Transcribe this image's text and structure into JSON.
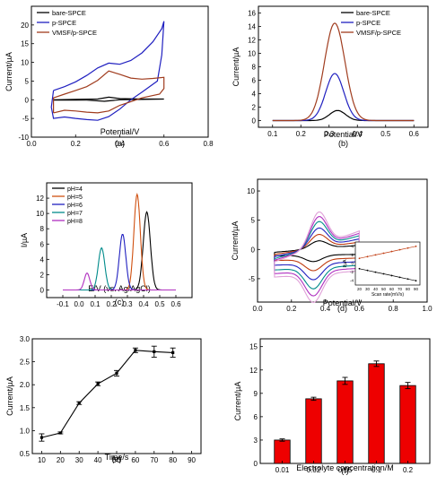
{
  "chart_data": [
    {
      "panel": "(a)",
      "type": "line",
      "xlabel": "Potential/V",
      "ylabel": "Current/µA",
      "xlim": [
        0.0,
        0.8
      ],
      "ylim": [
        -10,
        25
      ],
      "xticks": [
        "0.0",
        "0.2",
        "0.4",
        "0.6",
        "0.8"
      ],
      "yticks": [
        "-10",
        "-5",
        "0",
        "5",
        "10",
        "15",
        "20"
      ],
      "legend": "top-left",
      "series": [
        {
          "name": "bare-SPCE",
          "color": "#000000",
          "points": [
            [
              0.1,
              0
            ],
            [
              0.2,
              0.1
            ],
            [
              0.3,
              0.2
            ],
            [
              0.35,
              0.7
            ],
            [
              0.4,
              0.3
            ],
            [
              0.5,
              0.2
            ],
            [
              0.6,
              0.2
            ],
            [
              0.5,
              0.1
            ],
            [
              0.4,
              0
            ],
            [
              0.33,
              -0.4
            ],
            [
              0.25,
              -0.1
            ],
            [
              0.1,
              -0.1
            ]
          ]
        },
        {
          "name": "p-SPCE",
          "color": "#2020c0",
          "points": [
            [
              0.1,
              2.5
            ],
            [
              0.15,
              3.5
            ],
            [
              0.2,
              4.8
            ],
            [
              0.25,
              6.5
            ],
            [
              0.3,
              8.5
            ],
            [
              0.35,
              9.8
            ],
            [
              0.4,
              9.5
            ],
            [
              0.45,
              10.5
            ],
            [
              0.5,
              12.5
            ],
            [
              0.55,
              15.5
            ],
            [
              0.59,
              19
            ],
            [
              0.6,
              21
            ],
            [
              0.59,
              12
            ],
            [
              0.57,
              5
            ],
            [
              0.5,
              2
            ],
            [
              0.45,
              0
            ],
            [
              0.4,
              -2.5
            ],
            [
              0.35,
              -4.5
            ],
            [
              0.3,
              -5.5
            ],
            [
              0.25,
              -5.3
            ],
            [
              0.2,
              -5
            ],
            [
              0.15,
              -4.6
            ],
            [
              0.1,
              -5
            ],
            [
              0.09,
              -2
            ],
            [
              0.1,
              2.5
            ]
          ]
        },
        {
          "name": "VMSF/p-SPCE",
          "color": "#a03c1e",
          "points": [
            [
              0.1,
              -3.5
            ],
            [
              0.1,
              0.5
            ],
            [
              0.15,
              1.5
            ],
            [
              0.2,
              2.5
            ],
            [
              0.25,
              3.5
            ],
            [
              0.3,
              5.2
            ],
            [
              0.35,
              7.7
            ],
            [
              0.4,
              6.8
            ],
            [
              0.45,
              5.8
            ],
            [
              0.5,
              5.5
            ],
            [
              0.55,
              5.7
            ],
            [
              0.6,
              6
            ],
            [
              0.6,
              3
            ],
            [
              0.58,
              1.5
            ],
            [
              0.5,
              0.5
            ],
            [
              0.45,
              -0.5
            ],
            [
              0.4,
              -1.5
            ],
            [
              0.35,
              -3
            ],
            [
              0.3,
              -3.5
            ],
            [
              0.25,
              -3.3
            ],
            [
              0.2,
              -3
            ],
            [
              0.15,
              -2.8
            ],
            [
              0.1,
              -3.5
            ]
          ]
        }
      ],
      "caption": "(a)"
    },
    {
      "panel": "(b)",
      "type": "line",
      "xlabel": "Potential/V",
      "ylabel": "Current/µA",
      "xlim": [
        0.05,
        0.65
      ],
      "ylim": [
        -1,
        17
      ],
      "xticks": [
        "0.1",
        "0.2",
        "0.3",
        "0.4",
        "0.5",
        "0.6"
      ],
      "yticks": [
        "0",
        "2",
        "4",
        "6",
        "8",
        "10",
        "12",
        "14",
        "16"
      ],
      "legend": "top-right",
      "series": [
        {
          "name": "bare-SPCE",
          "color": "#000000",
          "peak_x": 0.33,
          "peak_y": 1.5,
          "sigma": 0.028
        },
        {
          "name": "p-SPCE",
          "color": "#2020c0",
          "peak_x": 0.32,
          "peak_y": 7.0,
          "sigma": 0.032
        },
        {
          "name": "VMSF/p-SPCE",
          "color": "#a03c1e",
          "peak_x": 0.32,
          "peak_y": 14.5,
          "sigma": 0.036
        }
      ],
      "caption": "(b)"
    },
    {
      "panel": "(c)",
      "type": "line",
      "xlabel": "E/V (vs. Ag/AgCl)",
      "ylabel": "I/µA",
      "xlim": [
        -0.2,
        0.7
      ],
      "ylim": [
        -1,
        14
      ],
      "xticks": [
        "-0.1",
        "0.0",
        "0.1",
        "0.2",
        "0.3",
        "0.4",
        "0.5",
        "0.6"
      ],
      "yticks": [
        "0",
        "2",
        "4",
        "6",
        "8",
        "10",
        "12"
      ],
      "legend": "top-left",
      "series": [
        {
          "name": "pH=4",
          "color": "#000000",
          "peak_x": 0.42,
          "peak_y": 10.2,
          "sigma": 0.022
        },
        {
          "name": "pH=5",
          "color": "#d05010",
          "peak_x": 0.36,
          "peak_y": 12.5,
          "sigma": 0.02
        },
        {
          "name": "pH=6",
          "color": "#2020c0",
          "peak_x": 0.27,
          "peak_y": 7.3,
          "sigma": 0.02
        },
        {
          "name": "pH=7",
          "color": "#008b8b",
          "peak_x": 0.14,
          "peak_y": 5.5,
          "sigma": 0.02
        },
        {
          "name": "pH=8",
          "color": "#b030c0",
          "peak_x": 0.05,
          "peak_y": 2.2,
          "sigma": 0.017
        }
      ],
      "caption": "(c)"
    },
    {
      "panel": "(d)",
      "type": "line",
      "xlabel": "Potential/V",
      "ylabel": "Current/µA",
      "xlim": [
        0.0,
        1.0
      ],
      "ylim": [
        -9,
        12
      ],
      "xticks": [
        "0.0",
        "0.2",
        "0.4",
        "0.6",
        "0.8",
        "1.0"
      ],
      "yticks": [
        "-5",
        "0",
        "5",
        "10"
      ],
      "legend": "none",
      "cv_scale": [
        0.24,
        0.42,
        0.6,
        0.78,
        0.92,
        1.05
      ],
      "colors": [
        "#000000",
        "#c03c10",
        "#2020c0",
        "#008b8b",
        "#b030c0",
        "#e0a0d8"
      ],
      "inset": {
        "xlabel": "Scan rate(mV/s)",
        "ylabel": "I/µA",
        "xticks": [
          "20",
          "30",
          "40",
          "50",
          "60",
          "70",
          "80",
          "90"
        ],
        "yticks": [
          "-4",
          "-2",
          "0",
          "2",
          "4"
        ],
        "xlim": [
          15,
          95
        ],
        "ylim": [
          -5,
          5
        ],
        "series": [
          {
            "color": "#c03c10",
            "x": [
              20,
              30,
              40,
              50,
              60,
              70,
              80,
              90
            ],
            "y": [
              1.2,
              1.6,
              2.0,
              2.4,
              2.8,
              3.2,
              3.6,
              4.0
            ]
          },
          {
            "color": "#000000",
            "x": [
              20,
              30,
              40,
              50,
              60,
              70,
              80,
              90
            ],
            "y": [
              -1.2,
              -1.6,
              -2.0,
              -2.4,
              -2.8,
              -3.2,
              -3.6,
              -4.0
            ]
          }
        ]
      },
      "caption": "(d)"
    },
    {
      "panel": "(e)",
      "type": "line",
      "xlabel": "Time/s",
      "ylabel": "Current/µA",
      "xlim": [
        5,
        95
      ],
      "ylim": [
        0.5,
        3.0
      ],
      "xticks": [
        "10",
        "20",
        "30",
        "40",
        "50",
        "60",
        "70",
        "80",
        "90"
      ],
      "yticks": [
        "0.5",
        "1.0",
        "1.5",
        "2.0",
        "2.5",
        "3.0"
      ],
      "color": "#000000",
      "x": [
        10,
        20,
        30,
        40,
        50,
        60,
        70,
        80
      ],
      "values": [
        0.85,
        0.95,
        1.6,
        2.02,
        2.25,
        2.75,
        2.72,
        2.7
      ],
      "errors": [
        0.08,
        0.02,
        0.03,
        0.04,
        0.06,
        0.05,
        0.12,
        0.1
      ],
      "caption": "(e)"
    },
    {
      "panel": "(f)",
      "type": "bar",
      "xlabel": "Electrolyte concentration/M",
      "ylabel": "Current/µA",
      "ylim": [
        0,
        16
      ],
      "yticks": [
        "0",
        "3",
        "6",
        "9",
        "12",
        "15"
      ],
      "categories": [
        "0.01",
        "0.02",
        "0.05",
        "0.1",
        "0.2"
      ],
      "values": [
        3.0,
        8.3,
        10.6,
        12.8,
        10.0
      ],
      "errors": [
        0.15,
        0.2,
        0.45,
        0.35,
        0.4
      ],
      "color": "#ee0000",
      "caption": "(f)"
    }
  ]
}
